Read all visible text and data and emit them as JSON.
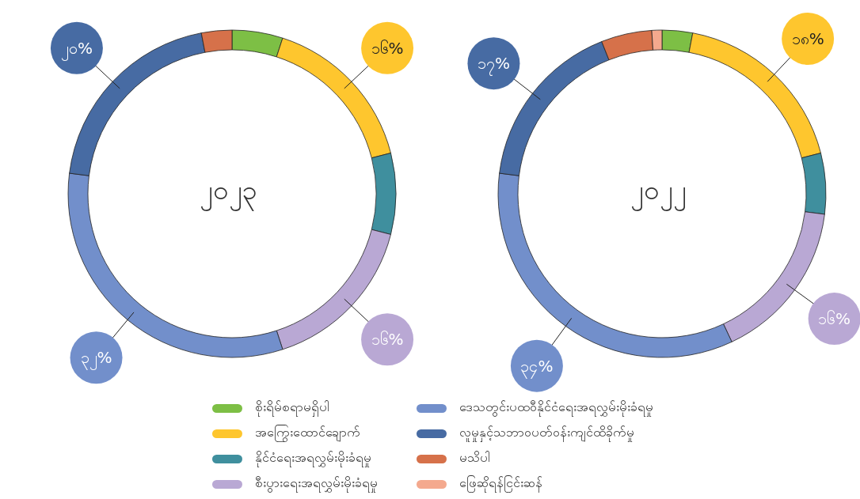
{
  "chart_data": {
    "type": "donut",
    "categories": [
      "စိုးရိမ်စရာမရှိပါ",
      "အကြွေးထောင်ချောက်",
      "နိုင်ငံရေးအရလွှမ်းမိုးခံရမှု",
      "စီးပွားရေးအရလွှမ်းမိုးခံရမှု",
      "ဒေသတွင်းပထဝီနိုင်ငံရေးအရလွှမ်းမိုးခံရမှု",
      "လူမှုနှင့်သဘာဝပတ်ဝန်းကျင်ထိခိုက်မှု",
      "မသိပါ",
      "ဖြေဆိုရန်ငြင်းဆန်"
    ],
    "colors": [
      "#7dbf45",
      "#fec62e",
      "#3f8f9e",
      "#b9a8d4",
      "#728fcb",
      "#476ba3",
      "#d6714a",
      "#f4a98e"
    ],
    "series": [
      {
        "name": "၂၀၂၃",
        "values": [
          5,
          16,
          8,
          16,
          32,
          20,
          3,
          0
        ],
        "value_labels": [
          null,
          "၁၆%",
          null,
          "၁၆%",
          "၃၂%",
          "၂၀%",
          null,
          null
        ]
      },
      {
        "name": "၂၀၂၂",
        "values": [
          3,
          18,
          6,
          16,
          34,
          17,
          5,
          1
        ],
        "value_labels": [
          null,
          "၁၈%",
          null,
          "၁၆%",
          "၃၄%",
          "၁၇%",
          null,
          null
        ]
      }
    ],
    "legend": "bottom"
  }
}
